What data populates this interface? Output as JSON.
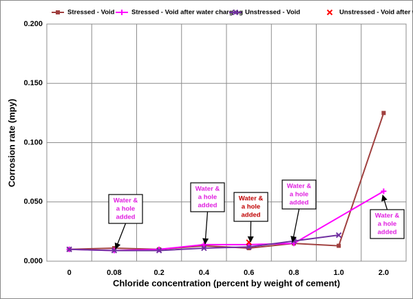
{
  "chart_data": {
    "type": "line",
    "xlabel": "Chloride concentration (percent by weight of cement)",
    "ylabel": "Corrosion rate (mpy)",
    "categories": [
      "0",
      "0.08",
      "0.2",
      "0.4",
      "0.6",
      "0.8",
      "1.0",
      "2.0"
    ],
    "series": [
      {
        "name": "Stressed - Void",
        "color": "#a0403f",
        "marker": "square",
        "line": true,
        "values": [
          0.01,
          0.011,
          0.01,
          0.013,
          0.011,
          0.015,
          0.013,
          0.125
        ]
      },
      {
        "name": "Stressed - Void after water charging",
        "color": "#ff00ff",
        "marker": "plus",
        "line": true,
        "values": [
          0.01,
          0.009,
          0.01,
          0.014,
          0.014,
          0.015,
          null,
          0.059
        ]
      },
      {
        "name": "Unstressed - Void",
        "color": "#7030a0",
        "marker": "x",
        "line": true,
        "values": [
          0.01,
          0.009,
          0.009,
          0.011,
          0.012,
          0.017,
          0.022,
          null
        ]
      },
      {
        "name": "Unstressed - Void after water charging",
        "color": "#ff0000",
        "marker": "x",
        "line": false,
        "values": [
          null,
          null,
          null,
          null,
          0.016,
          null,
          null,
          null
        ]
      }
    ],
    "connect_gaps": true,
    "ylim": [
      0,
      0.2
    ],
    "yticks": [
      {
        "value": 0,
        "label": "0.000"
      },
      {
        "value": 0.05,
        "label": "0.050"
      },
      {
        "value": 0.1,
        "label": "0.100"
      },
      {
        "value": 0.15,
        "label": "0.150"
      },
      {
        "value": 0.2,
        "label": "0.200"
      }
    ],
    "grid": true,
    "legend": "top",
    "annotations": [
      {
        "lines": [
          "Water &",
          "a hole",
          "added"
        ],
        "color": "#e020e0"
      },
      {
        "lines": [
          "Water &",
          "a hole",
          "added"
        ],
        "color": "#e020e0"
      },
      {
        "lines": [
          "Water &",
          "a hole",
          "added"
        ],
        "color": "#c00000"
      },
      {
        "lines": [
          "Water &",
          "a hole",
          "added"
        ],
        "color": "#e020e0"
      },
      {
        "lines": [
          "Water &",
          "a hole",
          "added"
        ],
        "color": "#e020e0"
      }
    ]
  }
}
